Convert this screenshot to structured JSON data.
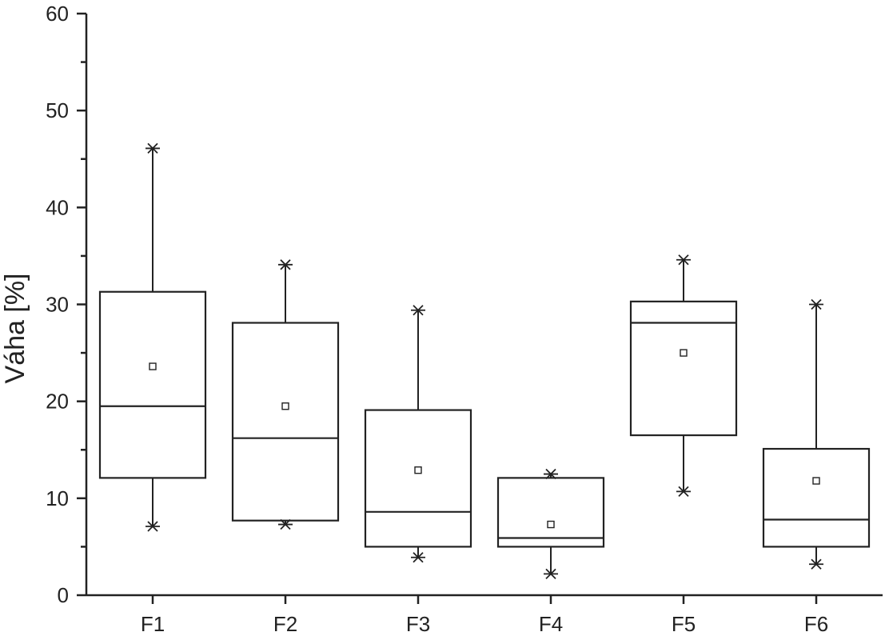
{
  "chart_data": {
    "type": "box",
    "ylabel": "Váha [%]",
    "ylim": [
      0,
      60
    ],
    "y_ticks": [
      0,
      10,
      20,
      30,
      40,
      50,
      60
    ],
    "y_minor_step": 5,
    "grid": false,
    "categories": [
      "F1",
      "F2",
      "F3",
      "F4",
      "F5",
      "F6"
    ],
    "boxes": [
      {
        "category": "F1",
        "min": 7.1,
        "q1": 12.1,
        "median": 19.5,
        "q3": 31.3,
        "max": 46.1,
        "mean": 23.6
      },
      {
        "category": "F2",
        "min": 7.3,
        "q1": 7.7,
        "median": 16.2,
        "q3": 28.1,
        "max": 34.1,
        "mean": 19.5
      },
      {
        "category": "F3",
        "min": 3.9,
        "q1": 5.0,
        "median": 8.6,
        "q3": 19.1,
        "max": 29.4,
        "mean": 12.9
      },
      {
        "category": "F4",
        "min": 2.2,
        "q1": 5.0,
        "median": 5.9,
        "q3": 12.1,
        "max": 12.5,
        "mean": 7.3
      },
      {
        "category": "F5",
        "min": 10.7,
        "q1": 16.5,
        "median": 28.1,
        "q3": 30.3,
        "max": 34.6,
        "mean": 25.0
      },
      {
        "category": "F6",
        "min": 3.2,
        "q1": 5.0,
        "median": 7.8,
        "q3": 15.1,
        "max": 30.0,
        "mean": 11.8
      }
    ]
  }
}
